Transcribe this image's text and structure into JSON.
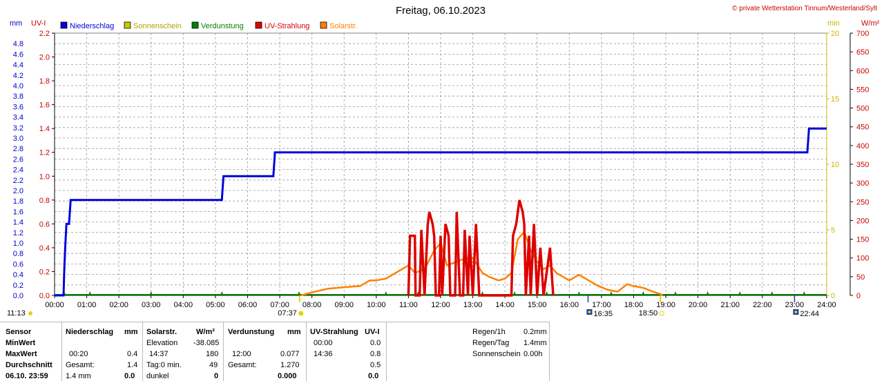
{
  "chart_data": {
    "type": "line",
    "title": "Freitag, 06.10.2023",
    "copyright": "© private Wetterstation Tinnum/Westerland/Sylt",
    "axes": {
      "mm": {
        "label": "mm",
        "min": 0,
        "max": 5.0,
        "ticks": [
          "0.0",
          "0.2",
          "0.4",
          "0.6",
          "0.8",
          "1.0",
          "1.2",
          "1.4",
          "1.6",
          "1.8",
          "2.0",
          "2.2",
          "2.4",
          "2.6",
          "2.8",
          "3.0",
          "3.2",
          "3.4",
          "3.6",
          "3.8",
          "4.0",
          "4.2",
          "4.4",
          "4.6",
          "4.8"
        ],
        "color": "#0000cc"
      },
      "uv": {
        "label": "UV-I",
        "min": 0,
        "max": 2.2,
        "ticks": [
          "0.0",
          "0.2",
          "0.4",
          "0.6",
          "0.8",
          "1.0",
          "1.2",
          "1.4",
          "1.6",
          "1.8",
          "2.0",
          "2.2"
        ],
        "color": "#cc0000"
      },
      "min": {
        "label": "min",
        "min": 0,
        "max": 20,
        "ticks": [
          "0",
          "5",
          "10",
          "15",
          "20"
        ],
        "color": "#c8b400"
      },
      "wm2": {
        "label": "W/m²",
        "min": 0,
        "max": 700,
        "ticks": [
          "0",
          "50",
          "100",
          "150",
          "200",
          "250",
          "300",
          "350",
          "400",
          "450",
          "500",
          "550",
          "600",
          "650",
          "700"
        ],
        "color": "#cc0000"
      }
    },
    "x_ticks": [
      "00:00",
      "01:00",
      "02:00",
      "03:00",
      "04:00",
      "05:00",
      "06:00",
      "07:00",
      "08:00",
      "09:00",
      "10:00",
      "11:00",
      "12:00",
      "13:00",
      "14:00",
      "15:00",
      "16:00",
      "17:00",
      "18:00",
      "19:00",
      "20:00",
      "21:00",
      "22:00",
      "23:00",
      "24:00"
    ],
    "x_range": [
      0,
      24
    ],
    "legend": [
      {
        "name": "Niederschlag",
        "color": "#0000dd"
      },
      {
        "name": "Sonnenschein",
        "color": "#c8c800"
      },
      {
        "name": "Verdunstung",
        "color": "#008000"
      },
      {
        "name": "UV-Strahlung",
        "color": "#dd0000"
      },
      {
        "name": "Solarstr.",
        "color": "#ff8000"
      }
    ],
    "sun_events": [
      {
        "label": "11:13",
        "x": 0
      },
      {
        "label": "07:37",
        "x": 7.617
      },
      {
        "label": "16:35",
        "x": 16.583
      },
      {
        "label": "18:50",
        "x": 18.833
      },
      {
        "label": "22:44",
        "x": 23.0
      }
    ],
    "precip_mm": [
      [
        0,
        0
      ],
      [
        0.28,
        0
      ],
      [
        0.3,
        0.2
      ],
      [
        0.33,
        0.4
      ],
      [
        0.37,
        0.6
      ],
      [
        0.45,
        0.6
      ],
      [
        0.5,
        0.8
      ],
      [
        5.2,
        0.8
      ],
      [
        5.25,
        1.0
      ],
      [
        6.8,
        1.0
      ],
      [
        6.85,
        1.2
      ],
      [
        23.4,
        1.2
      ],
      [
        23.45,
        1.4
      ],
      [
        24,
        1.4
      ]
    ],
    "uv_index": [
      [
        11.0,
        0
      ],
      [
        11.05,
        0.5
      ],
      [
        11.2,
        0.5
      ],
      [
        11.22,
        0
      ],
      [
        11.35,
        0
      ],
      [
        11.4,
        0.55
      ],
      [
        11.5,
        0
      ],
      [
        11.6,
        0.6
      ],
      [
        11.65,
        0.7
      ],
      [
        11.75,
        0.6
      ],
      [
        11.8,
        0.5
      ],
      [
        11.85,
        0
      ],
      [
        11.95,
        0
      ],
      [
        12.0,
        0.5
      ],
      [
        12.05,
        0
      ],
      [
        12.15,
        0.6
      ],
      [
        12.25,
        0.5
      ],
      [
        12.3,
        0
      ],
      [
        12.45,
        0
      ],
      [
        12.5,
        0.7
      ],
      [
        12.6,
        0
      ],
      [
        12.7,
        0
      ],
      [
        12.75,
        0.55
      ],
      [
        12.85,
        0
      ],
      [
        12.9,
        0.5
      ],
      [
        13.0,
        0
      ],
      [
        13.1,
        0.6
      ],
      [
        13.2,
        0
      ],
      [
        14.2,
        0
      ],
      [
        14.25,
        0.5
      ],
      [
        14.35,
        0.6
      ],
      [
        14.45,
        0.8
      ],
      [
        14.55,
        0.7
      ],
      [
        14.6,
        0.6
      ],
      [
        14.65,
        0
      ],
      [
        14.75,
        0.5
      ],
      [
        14.8,
        0
      ],
      [
        14.9,
        0.6
      ],
      [
        15.0,
        0
      ],
      [
        15.1,
        0.4
      ],
      [
        15.2,
        0
      ],
      [
        15.4,
        0.4
      ],
      [
        15.5,
        0
      ]
    ],
    "solar_wm2": [
      [
        7.65,
        0
      ],
      [
        8.0,
        8
      ],
      [
        8.5,
        18
      ],
      [
        9.0,
        22
      ],
      [
        9.5,
        25
      ],
      [
        9.8,
        40
      ],
      [
        10.0,
        40
      ],
      [
        10.3,
        45
      ],
      [
        10.6,
        60
      ],
      [
        10.8,
        70
      ],
      [
        11.0,
        80
      ],
      [
        11.2,
        60
      ],
      [
        11.5,
        70
      ],
      [
        11.8,
        120
      ],
      [
        12.0,
        140
      ],
      [
        12.2,
        80
      ],
      [
        12.5,
        90
      ],
      [
        12.8,
        100
      ],
      [
        13.0,
        100
      ],
      [
        13.3,
        60
      ],
      [
        13.5,
        50
      ],
      [
        13.8,
        40
      ],
      [
        14.0,
        45
      ],
      [
        14.2,
        60
      ],
      [
        14.4,
        150
      ],
      [
        14.6,
        170
      ],
      [
        14.8,
        120
      ],
      [
        15.0,
        90
      ],
      [
        15.2,
        70
      ],
      [
        15.4,
        80
      ],
      [
        15.6,
        60
      ],
      [
        15.8,
        50
      ],
      [
        16.0,
        40
      ],
      [
        16.3,
        55
      ],
      [
        16.6,
        40
      ],
      [
        16.9,
        25
      ],
      [
        17.2,
        15
      ],
      [
        17.5,
        10
      ],
      [
        17.8,
        30
      ],
      [
        18.0,
        25
      ],
      [
        18.3,
        20
      ],
      [
        18.6,
        10
      ],
      [
        18.85,
        3
      ],
      [
        18.9,
        0
      ]
    ],
    "evaporation_markers": [
      0.3,
      1.1,
      3.0,
      5.2,
      7.6,
      10.3,
      11.3,
      12.3,
      13.3,
      14.3,
      15.3,
      16.3,
      17.3,
      18.3,
      19.3,
      20.3,
      21.3,
      22.3,
      23.3
    ]
  },
  "table": {
    "col_sensor": {
      "header": "Sensor",
      "rows": [
        "MinWert",
        "MaxWert",
        "Durchschnitt",
        "06.10. 23:59"
      ]
    },
    "col_precip": {
      "header": "Niederschlag",
      "unit": "mm",
      "min": "",
      "max_time": "00:20",
      "max": "0.4",
      "avg_label": "Gesamt:",
      "avg": "1.4",
      "cur_label": "1.4 mm",
      "cur": "0.0"
    },
    "col_solar": {
      "header": "Solarstr.",
      "unit": "W/m²",
      "min_label": "Elevation",
      "min": "-38.085",
      "max_time": "14:37",
      "max": "180",
      "avg_label": "Tag:0 min.",
      "avg": "49",
      "cur_label": "dunkel",
      "cur": "0"
    },
    "col_evap": {
      "header": "Verdunstung",
      "unit": "mm",
      "max_time": "12:00",
      "max": "0.077",
      "avg_label": "Gesamt:",
      "avg": "1.270",
      "cur": "0.000"
    },
    "col_uv": {
      "header": "UV-Strahlung",
      "unit": "UV-I",
      "min_time": "00:00",
      "min": "0.0",
      "max_time": "14:36",
      "max": "0.8",
      "avg": "0.5",
      "cur": "0.0"
    },
    "summary": [
      {
        "label": "Regen/1h",
        "value": "0.2mm"
      },
      {
        "label": "Regen/Tag",
        "value": "1.4mm"
      },
      {
        "label": "Sonnenschein",
        "value": "0.00h"
      }
    ]
  }
}
